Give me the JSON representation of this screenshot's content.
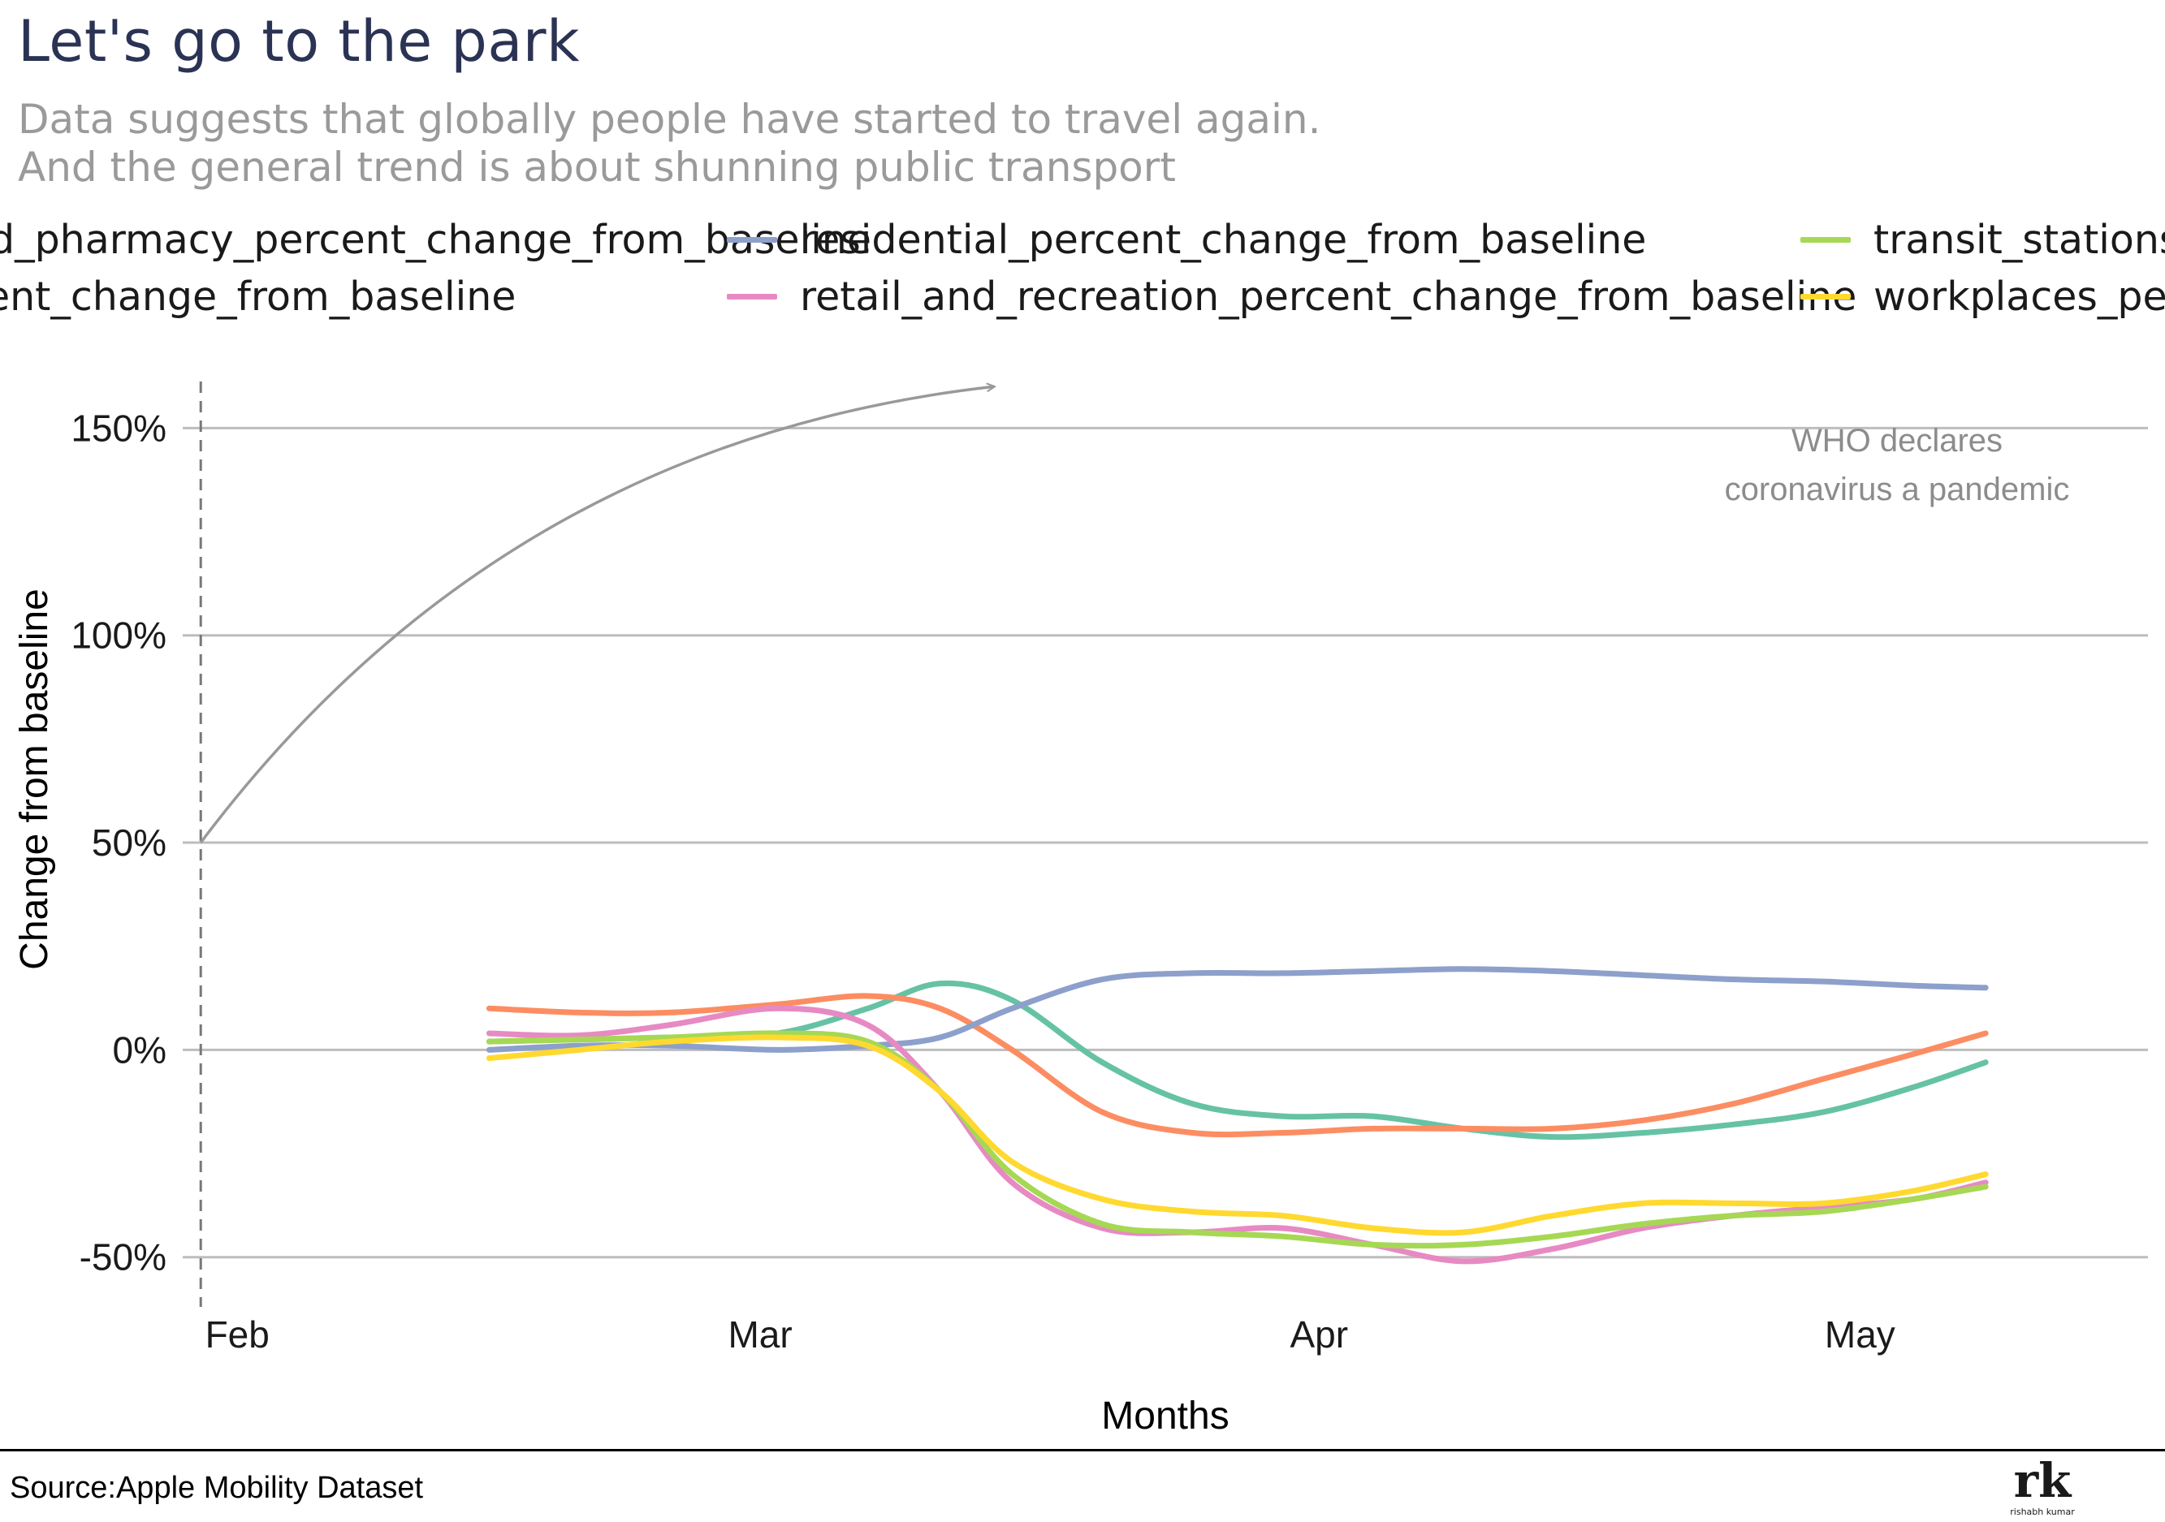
{
  "title": "Let's go to the park",
  "subtitle_lines": [
    "Data suggests that globally people have started to travel again.",
    "And the general trend is about shunning public transport"
  ],
  "legend": [
    {
      "label": "grocery_and_pharmacy_percent_change_from_baseline",
      "color": "#66c2a5"
    },
    {
      "label": "parks_percent_change_from_baseline",
      "color": "#fc8d62"
    },
    {
      "label": "residential_percent_change_from_baseline",
      "color": "#8da0cb"
    },
    {
      "label": "retail_and_recreation_percent_change_from_baseline",
      "color": "#e78ac3"
    },
    {
      "label": "transit_stations_percent_change_from_baseline",
      "color": "#a6d854"
    },
    {
      "label": "workplaces_percent_change_from_baseline",
      "color": "#ffd92f"
    }
  ],
  "annotation": {
    "lines": [
      "WHO declares",
      "coronavirus a pandemic"
    ],
    "marker_date": "2020-02-01",
    "arrow_from": {
      "x": "2020-02-01",
      "y": 50
    },
    "arrow_to": {
      "x": "2020-03-16",
      "y": 160
    }
  },
  "source": "Source:Apple Mobility Dataset",
  "logo": {
    "text": "rk",
    "caption": "rishabh kumar"
  },
  "chart_data": {
    "type": "line",
    "xlabel": "Months",
    "ylabel": "Change from baseline",
    "xlim": [
      "2020-01-31",
      "2020-05-19"
    ],
    "ylim": [
      -62,
      172
    ],
    "x_ticks": [
      {
        "date": "2020-02-01",
        "label": "Feb"
      },
      {
        "date": "2020-03-01",
        "label": "Mar"
      },
      {
        "date": "2020-04-01",
        "label": "Apr"
      },
      {
        "date": "2020-05-01",
        "label": "May"
      }
    ],
    "y_ticks": [
      {
        "value": 150,
        "label": "150%"
      },
      {
        "value": 100,
        "label": "100%"
      },
      {
        "value": 50,
        "label": "50%"
      },
      {
        "value": 0,
        "label": "0%"
      },
      {
        "value": -50,
        "label": "-50%"
      }
    ],
    "grid": true,
    "legend_position": "top",
    "series": [
      {
        "name": "grocery_and_pharmacy_percent_change_from_baseline",
        "color": "#66c2a5",
        "x": [
          "2020-02-17",
          "2020-02-22",
          "2020-02-27",
          "2020-03-04",
          "2020-03-09",
          "2020-03-13",
          "2020-03-17",
          "2020-03-22",
          "2020-03-27",
          "2020-04-01",
          "2020-04-06",
          "2020-04-11",
          "2020-04-16",
          "2020-04-21",
          "2020-04-26",
          "2020-05-01",
          "2020-05-06",
          "2020-05-10"
        ],
        "y": [
          2,
          2.5,
          3,
          4,
          10,
          16,
          12,
          -3,
          -13,
          -16,
          -16,
          -19,
          -21,
          -20,
          -18,
          -15,
          -9,
          -3
        ]
      },
      {
        "name": "parks_percent_change_from_baseline",
        "color": "#fc8d62",
        "x": [
          "2020-02-17",
          "2020-02-22",
          "2020-02-27",
          "2020-03-04",
          "2020-03-09",
          "2020-03-13",
          "2020-03-17",
          "2020-03-22",
          "2020-03-27",
          "2020-04-01",
          "2020-04-06",
          "2020-04-11",
          "2020-04-16",
          "2020-04-21",
          "2020-04-26",
          "2020-05-01",
          "2020-05-06",
          "2020-05-10"
        ],
        "y": [
          10,
          9,
          9,
          11,
          13,
          10,
          0,
          -15,
          -20,
          -20,
          -19,
          -19,
          -19,
          -17,
          -13,
          -7,
          -1,
          4
        ]
      },
      {
        "name": "residential_percent_change_from_baseline",
        "color": "#8da0cb",
        "x": [
          "2020-02-17",
          "2020-02-22",
          "2020-02-27",
          "2020-03-04",
          "2020-03-09",
          "2020-03-13",
          "2020-03-17",
          "2020-03-22",
          "2020-03-27",
          "2020-04-01",
          "2020-04-06",
          "2020-04-11",
          "2020-04-16",
          "2020-04-21",
          "2020-04-26",
          "2020-05-01",
          "2020-05-06",
          "2020-05-10"
        ],
        "y": [
          0,
          1,
          1,
          0,
          1,
          3,
          10,
          17,
          18.5,
          18.5,
          19,
          19.5,
          19,
          18,
          17,
          16.5,
          15.5,
          15
        ]
      },
      {
        "name": "retail_and_recreation_percent_change_from_baseline",
        "color": "#e78ac3",
        "x": [
          "2020-02-17",
          "2020-02-22",
          "2020-02-27",
          "2020-03-04",
          "2020-03-09",
          "2020-03-13",
          "2020-03-17",
          "2020-03-22",
          "2020-03-27",
          "2020-04-01",
          "2020-04-06",
          "2020-04-11",
          "2020-04-16",
          "2020-04-21",
          "2020-04-26",
          "2020-05-01",
          "2020-05-06",
          "2020-05-10"
        ],
        "y": [
          4,
          3.5,
          6,
          10,
          6,
          -10,
          -32,
          -43,
          -44,
          -43,
          -47,
          -51,
          -48,
          -43,
          -40,
          -38,
          -36,
          -32
        ]
      },
      {
        "name": "transit_stations_percent_change_from_baseline",
        "color": "#a6d854",
        "x": [
          "2020-02-17",
          "2020-02-22",
          "2020-02-27",
          "2020-03-04",
          "2020-03-09",
          "2020-03-13",
          "2020-03-17",
          "2020-03-22",
          "2020-03-27",
          "2020-04-01",
          "2020-04-06",
          "2020-04-11",
          "2020-04-16",
          "2020-04-21",
          "2020-04-26",
          "2020-05-01",
          "2020-05-06",
          "2020-05-10"
        ],
        "y": [
          2,
          2.5,
          3,
          4,
          2,
          -10,
          -30,
          -42,
          -44,
          -45,
          -47,
          -47,
          -45,
          -42,
          -40,
          -39,
          -36,
          -33
        ]
      },
      {
        "name": "workplaces_percent_change_from_baseline",
        "color": "#ffd92f",
        "x": [
          "2020-02-17",
          "2020-02-22",
          "2020-02-27",
          "2020-03-04",
          "2020-03-09",
          "2020-03-13",
          "2020-03-17",
          "2020-03-22",
          "2020-03-27",
          "2020-04-01",
          "2020-04-06",
          "2020-04-11",
          "2020-04-16",
          "2020-04-21",
          "2020-04-26",
          "2020-05-01",
          "2020-05-06",
          "2020-05-10"
        ],
        "y": [
          -2,
          0,
          2,
          3,
          1,
          -10,
          -27,
          -36,
          -39,
          -40,
          -43,
          -44,
          -40,
          -37,
          -37,
          -37,
          -34,
          -30
        ]
      }
    ]
  }
}
